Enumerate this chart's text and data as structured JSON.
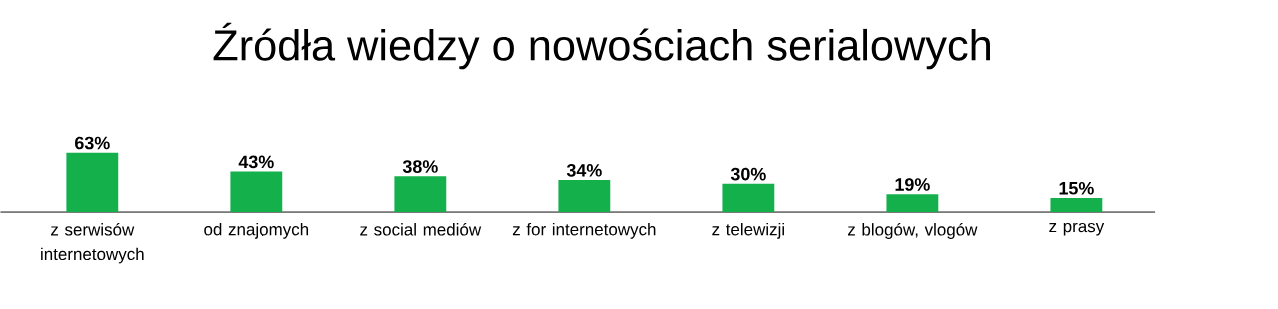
{
  "chart_data": {
    "type": "bar",
    "title": "Źródła wiedzy o nowościach serialowych",
    "categories": [
      "z serwisów internetowych",
      "od znajomych",
      "z social mediów",
      "z for internetowych",
      "z telewizji",
      "z blogów, vlogów",
      "z prasy"
    ],
    "values": [
      63,
      43,
      38,
      34,
      30,
      19,
      15
    ],
    "value_labels": [
      "63%",
      "43%",
      "38%",
      "34%",
      "30%",
      "19%",
      "15%"
    ],
    "color": "#13b04b"
  }
}
